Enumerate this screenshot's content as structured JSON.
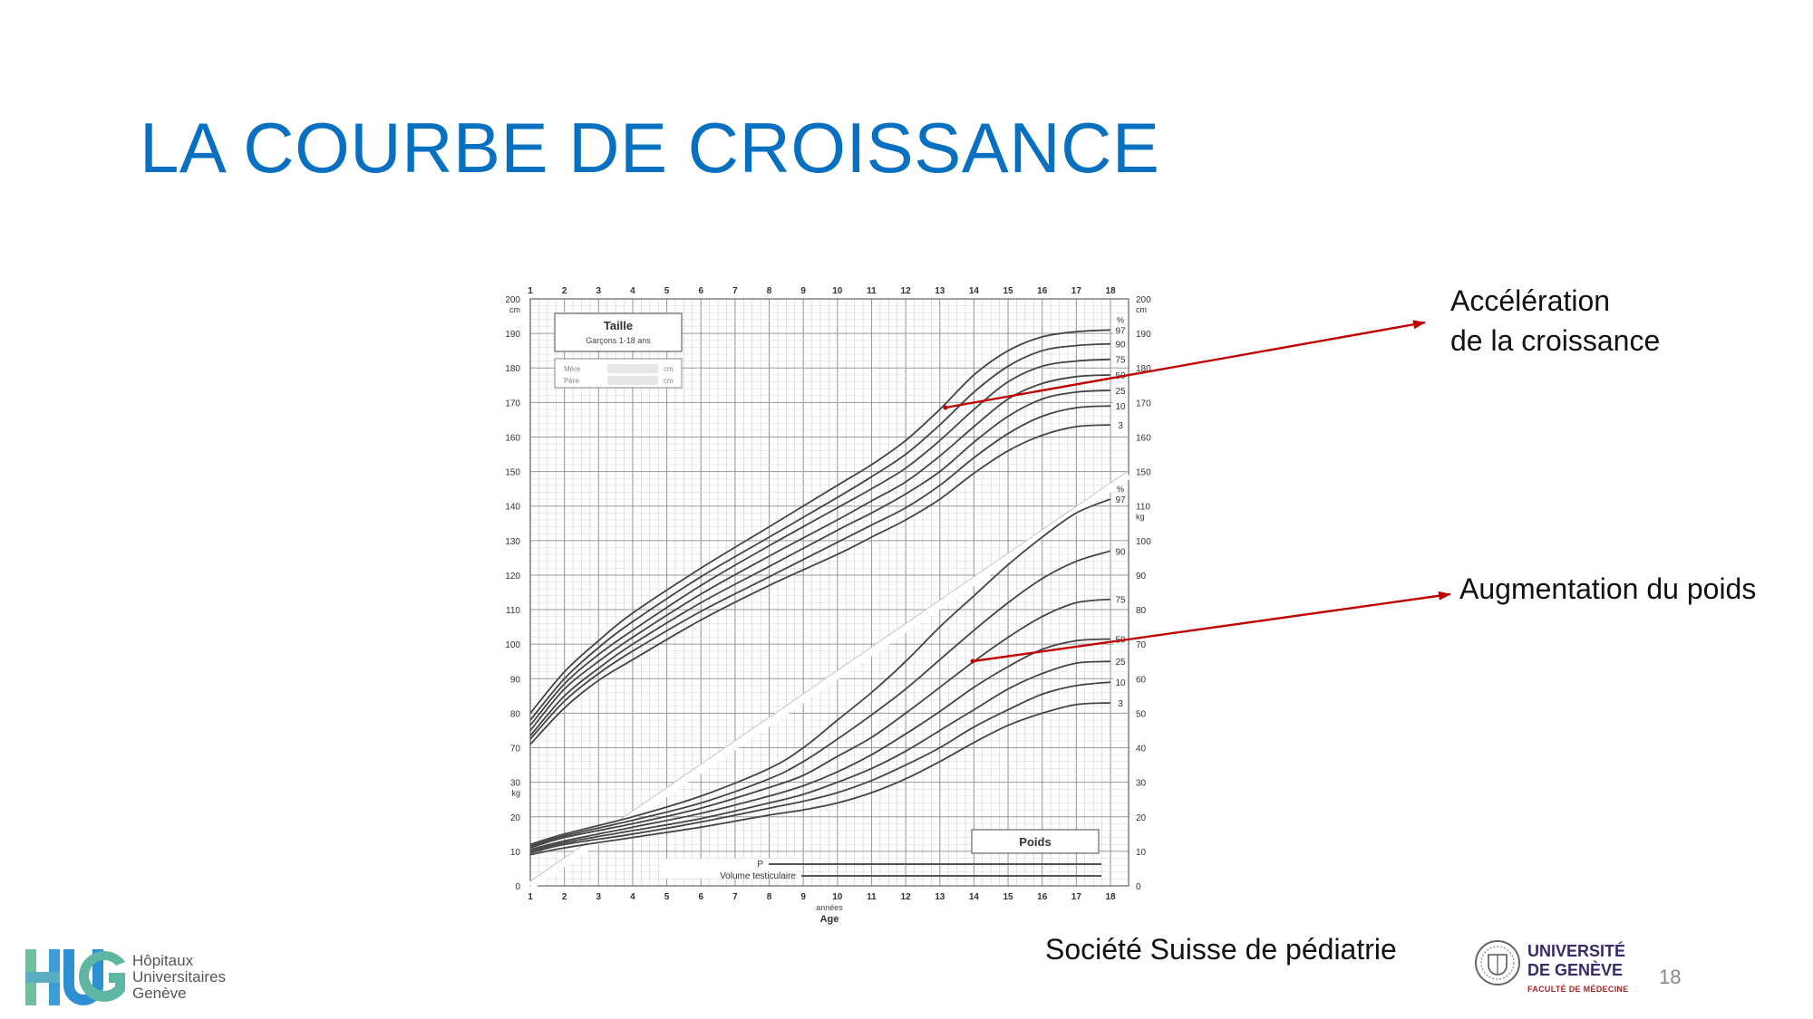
{
  "slide": {
    "title": "LA COURBE DE CROISSANCE",
    "annotations": [
      {
        "line1": "Accélération",
        "line2": "de la croissance"
      },
      {
        "line1": "Augmentation du poids",
        "line2": ""
      }
    ],
    "source": "Société Suisse de pédiatrie",
    "page_number": "18",
    "colors": {
      "title": "#0870c1",
      "arrow": "#c00000",
      "curve": "#444444",
      "grid": "#bdbdbd"
    }
  },
  "logos": {
    "hug": {
      "mark": "HUG",
      "lines": [
        "Hôpitaux",
        "Universitaires",
        "Genève"
      ]
    },
    "unige": {
      "line1": "UNIVERSITÉ",
      "line2": "DE GENÈVE",
      "line3": "FACULTÉ DE MÉDECINE"
    }
  },
  "chart_data": {
    "type": "line",
    "title": "Taille",
    "subtitle": "Garçons 1-18 ans",
    "parents_box": [
      {
        "label": "Mère",
        "unit": "cm"
      },
      {
        "label": "Père",
        "unit": "cm"
      }
    ],
    "weight_box_label": "Poids",
    "bottom_rows": [
      "P",
      "Volume testiculaire"
    ],
    "xlabel": "Age",
    "xlabel_unit": "années",
    "x_ticks": [
      1,
      2,
      3,
      4,
      5,
      6,
      7,
      8,
      9,
      10,
      11,
      12,
      13,
      14,
      15,
      16,
      17,
      18
    ],
    "xlim": [
      1,
      18
    ],
    "height_axis": {
      "unit": "cm",
      "ticks": [
        70,
        80,
        90,
        100,
        110,
        120,
        130,
        140,
        150,
        160,
        170,
        180,
        190,
        200
      ]
    },
    "weight_axis_left": {
      "unit": "kg",
      "ticks": [
        0,
        10,
        20,
        30
      ]
    },
    "weight_axis_right": {
      "unit": "kg",
      "ticks": [
        0,
        10,
        20,
        30,
        40,
        50,
        60,
        70,
        80,
        90,
        100,
        110
      ]
    },
    "height_right_ticks": [
      150,
      160,
      170,
      180,
      190,
      200
    ],
    "percent_symbol": "%",
    "height_series": [
      {
        "name": "97",
        "x": [
          1,
          2,
          3,
          4,
          6,
          8,
          10,
          11,
          12,
          13,
          14,
          15,
          16,
          17,
          18
        ],
        "y": [
          80,
          92,
          101,
          109,
          122,
          134,
          146,
          152,
          159,
          168,
          178,
          185,
          189,
          190.5,
          191
        ]
      },
      {
        "name": "90",
        "x": [
          1,
          2,
          3,
          4,
          6,
          8,
          10,
          11,
          12,
          13,
          14,
          15,
          16,
          17,
          18
        ],
        "y": [
          78,
          90,
          99,
          106.5,
          119.5,
          131,
          142.5,
          148.5,
          155,
          163.5,
          173,
          180.5,
          185,
          186.5,
          187
        ]
      },
      {
        "name": "75",
        "x": [
          1,
          2,
          3,
          4,
          6,
          8,
          10,
          11,
          12,
          13,
          14,
          15,
          16,
          17,
          18
        ],
        "y": [
          76.5,
          88.5,
          97,
          104,
          117,
          128.5,
          139.5,
          145,
          151,
          159,
          168,
          176,
          180.5,
          182,
          182.5
        ]
      },
      {
        "name": "50",
        "x": [
          1,
          2,
          3,
          4,
          6,
          8,
          10,
          11,
          12,
          13,
          14,
          15,
          16,
          17,
          18
        ],
        "y": [
          75,
          87,
          95,
          102,
          114.5,
          125.5,
          136,
          141.5,
          147,
          154.5,
          163,
          171,
          175.5,
          177.5,
          178
        ]
      },
      {
        "name": "25",
        "x": [
          1,
          2,
          3,
          4,
          6,
          8,
          10,
          11,
          12,
          13,
          14,
          15,
          16,
          17,
          18
        ],
        "y": [
          73.5,
          85,
          93,
          100,
          112,
          122.5,
          133,
          138,
          143.5,
          150,
          158.5,
          166,
          171,
          173,
          173.5
        ]
      },
      {
        "name": "10",
        "x": [
          1,
          2,
          3,
          4,
          6,
          8,
          10,
          11,
          12,
          13,
          14,
          15,
          16,
          17,
          18
        ],
        "y": [
          72.5,
          83.5,
          91.5,
          98,
          109.5,
          119.5,
          129.5,
          134.5,
          139.5,
          146,
          154,
          161,
          166,
          168.5,
          169
        ]
      },
      {
        "name": "3",
        "x": [
          1,
          2,
          3,
          4,
          6,
          8,
          10,
          11,
          12,
          13,
          14,
          15,
          16,
          17,
          18
        ],
        "y": [
          71,
          81.5,
          89.5,
          95.5,
          107,
          117,
          126,
          131,
          136,
          142,
          149.5,
          156,
          160.5,
          163,
          163.5
        ]
      }
    ],
    "weight_series": [
      {
        "name": "97",
        "x": [
          1,
          2,
          4,
          6,
          8,
          9,
          10,
          11,
          12,
          13,
          14,
          15,
          16,
          17,
          18
        ],
        "y": [
          12,
          15,
          20,
          26,
          34,
          40,
          48,
          56,
          65,
          75,
          84,
          93,
          101,
          108,
          112
        ]
      },
      {
        "name": "90",
        "x": [
          1,
          2,
          4,
          6,
          8,
          9,
          10,
          11,
          12,
          13,
          14,
          15,
          16,
          17,
          18
        ],
        "y": [
          11.5,
          14.5,
          19,
          24,
          31,
          36,
          42.5,
          49.5,
          57,
          65.5,
          74,
          82,
          89,
          94,
          97
        ]
      },
      {
        "name": "75",
        "x": [
          1,
          2,
          4,
          6,
          8,
          9,
          10,
          11,
          12,
          13,
          14,
          15,
          16,
          17,
          18
        ],
        "y": [
          11,
          14,
          18,
          22.5,
          28.5,
          32,
          37.5,
          43,
          50,
          57.5,
          65,
          72,
          78,
          82,
          83
        ]
      },
      {
        "name": "50",
        "x": [
          1,
          2,
          4,
          6,
          8,
          9,
          10,
          11,
          12,
          13,
          14,
          15,
          16,
          17,
          18
        ],
        "y": [
          10.5,
          13,
          17,
          21,
          26,
          29,
          33,
          38,
          44,
          50.5,
          57.5,
          63.5,
          68.5,
          71,
          71.5
        ]
      },
      {
        "name": "25",
        "x": [
          1,
          2,
          4,
          6,
          8,
          9,
          10,
          11,
          12,
          13,
          14,
          15,
          16,
          17,
          18
        ],
        "y": [
          10,
          12.5,
          16,
          19.5,
          24,
          26.5,
          30,
          34,
          39,
          45,
          51,
          57,
          61.5,
          64.5,
          65
        ]
      },
      {
        "name": "10",
        "x": [
          1,
          2,
          4,
          6,
          8,
          9,
          10,
          11,
          12,
          13,
          14,
          15,
          16,
          17,
          18
        ],
        "y": [
          9.5,
          12,
          15,
          18.5,
          22.5,
          24.5,
          27,
          30.5,
          35,
          40,
          46,
          51,
          55.5,
          58,
          59
        ]
      },
      {
        "name": "3",
        "x": [
          1,
          2,
          4,
          6,
          8,
          9,
          10,
          11,
          12,
          13,
          14,
          15,
          16,
          17,
          18
        ],
        "y": [
          9,
          11,
          14,
          17,
          20.5,
          22,
          24,
          27,
          31,
          36,
          41.5,
          46.5,
          50,
          52.5,
          53
        ]
      }
    ]
  }
}
